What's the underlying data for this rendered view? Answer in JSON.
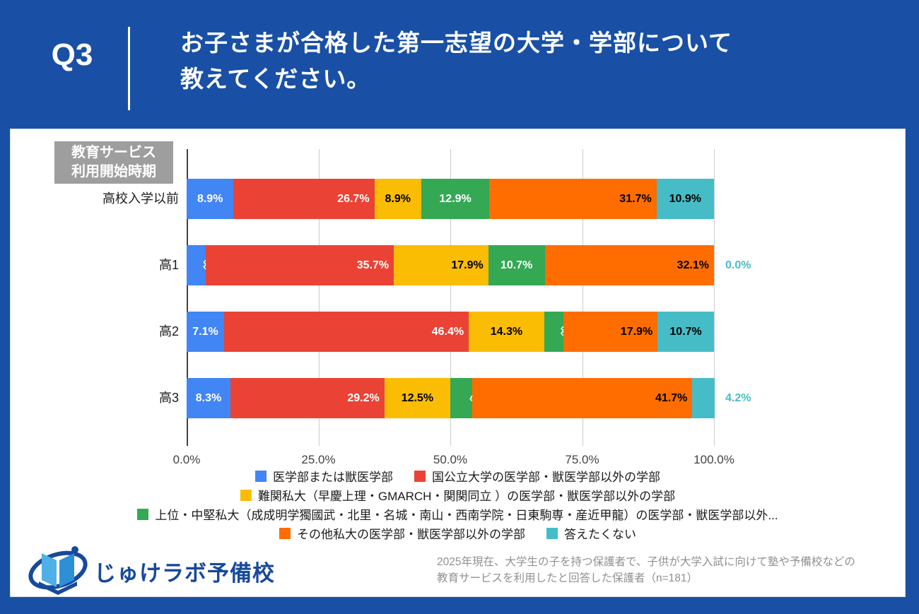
{
  "header": {
    "question_number": "Q3",
    "title_line1": "お子さまが合格した第一志望の大学・学部について",
    "title_line2": "教えてください。"
  },
  "chart": {
    "axis_note_line1": "教育サービス",
    "axis_note_line2": "利用開始時期",
    "x_ticks": [
      "0.0%",
      "25.0%",
      "50.0%",
      "75.0%",
      "100.0%"
    ]
  },
  "chart_data": {
    "type": "bar",
    "stacked": true,
    "orientation": "horizontal",
    "categories": [
      "高校入学以前",
      "高1",
      "高2",
      "高3"
    ],
    "series": [
      {
        "name": "医学部または獣医学部",
        "color": "#4285F4",
        "label_color": "#ffffff",
        "values": [
          8.9,
          3.6,
          7.1,
          8.3
        ]
      },
      {
        "name": "国公立大学の医学部・獣医学部以外の学部",
        "color": "#EA4335",
        "label_color": "#ffffff",
        "values": [
          26.7,
          35.7,
          46.4,
          29.2
        ]
      },
      {
        "name": "難関私大（早慶上理・GMARCH・関関同立 ）の医学部・獣医学部以外の学部",
        "color": "#FBBC04",
        "label_color": "#000000",
        "values": [
          8.9,
          17.9,
          14.3,
          12.5
        ]
      },
      {
        "name": "上位・中堅私大（成成明学獨國武・北里・名城・南山・西南学院・日東駒専・産近甲龍）の医学部・獣医学部以外...",
        "color": "#34A853",
        "label_color": "#ffffff",
        "values": [
          12.9,
          10.7,
          3.6,
          4.2
        ]
      },
      {
        "name": "その他私大の医学部・獣医学部以外の学部",
        "color": "#FF6D01",
        "label_color": "#000000",
        "values": [
          31.7,
          32.1,
          17.9,
          41.7
        ]
      },
      {
        "name": "答えたくない",
        "color": "#46BDC6",
        "label_color": "#000000",
        "values": [
          10.9,
          0.0,
          10.7,
          4.2
        ]
      }
    ],
    "xlim": [
      0,
      100
    ],
    "grid": true,
    "legend_position": "bottom",
    "legend_rows": [
      [
        0,
        1
      ],
      [
        2
      ],
      [
        3
      ],
      [
        4,
        5
      ]
    ]
  },
  "footer": {
    "logo_text": "じゅけラボ予備校",
    "note_line1": "2025年現在、大学生の子を持つ保護者で、子供が大学入試に向けて塾や予備校などの",
    "note_line2": "教育サービスを利用したと回答した保護者（n=181）"
  }
}
